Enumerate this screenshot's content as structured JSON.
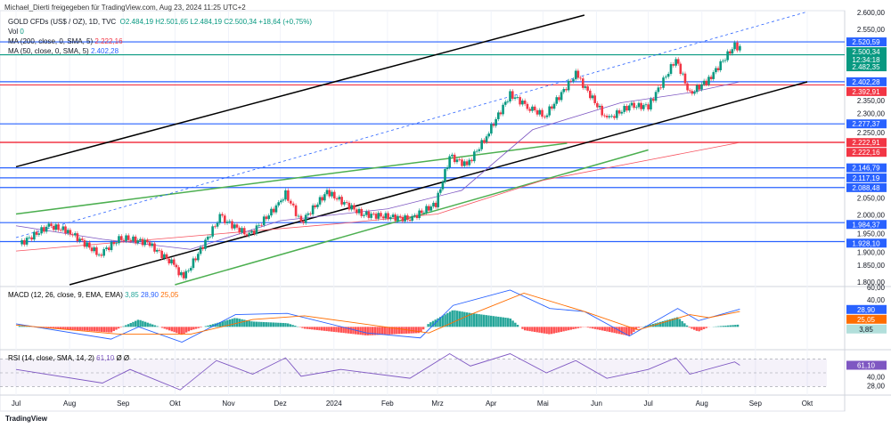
{
  "header": {
    "credit": "Michael_Dierti freigegeben für TradingView.com, Aug 23, 2024 11:25 UTC+2",
    "symbol": "GOLD CFDs (US$ / OZ), 1D, TVC",
    "o": "O2.484,19",
    "h": "H2.501,65",
    "l": "L2.484,19",
    "c": "C2.500,34",
    "chg": "+18,64 (+0,75%)",
    "vol_label": "Vol",
    "vol": "0",
    "ma200_label": "MA (200, close, 0, SMA, 5)",
    "ma200": "2.222,16",
    "ma50_label": "MA (50, close, 0, SMA, 5)",
    "ma50": "2.402,28",
    "macd_label": "MACD (12, 26, close, 9, EMA, EMA)",
    "macd_vals": [
      "3,85",
      "28,90",
      "25,05"
    ],
    "rsi_label": "RSI (14, close, SMA, 14, 2)",
    "rsi_vals": [
      "61,10",
      "Ø",
      "Ø"
    ]
  },
  "footer": {
    "logo": "TradingView"
  },
  "colors": {
    "up": "#089981",
    "down": "#f23645",
    "blue": "#2962ff",
    "ma50": "#7e57c2",
    "ma200": "#f7525f",
    "macd": "#2962ff",
    "signal": "#ff6d00",
    "rsi": "#7e57c2"
  },
  "chart_data": {
    "type": "candlestick",
    "ylim": [
      1800,
      2600
    ],
    "price_ticks": [
      "2.600,00",
      "2.550,00",
      "2.350,00",
      "2.300,00",
      "2.250,00",
      "2.050,00",
      "2.000,00",
      "1.950,00",
      "1.900,00",
      "1.850,00",
      "1.800,00"
    ],
    "price_tick_values": [
      2600,
      2550,
      2350,
      2300,
      2250,
      2050,
      2000,
      1950,
      1900,
      1850,
      1800
    ],
    "x_ticks": [
      {
        "label": "Jul",
        "date": "2023-07-01"
      },
      {
        "label": "Aug",
        "date": "2023-08-01"
      },
      {
        "label": "Sep",
        "date": "2023-09-01"
      },
      {
        "label": "Okt",
        "date": "2023-10-01"
      },
      {
        "label": "Nov",
        "date": "2023-11-01"
      },
      {
        "label": "Dez",
        "date": "2023-12-01"
      },
      {
        "label": "2024",
        "date": "2024-01-01"
      },
      {
        "label": "Feb",
        "date": "2024-02-01"
      },
      {
        "label": "Mrz",
        "date": "2024-03-01"
      },
      {
        "label": "Apr",
        "date": "2024-04-01"
      },
      {
        "label": "Mai",
        "date": "2024-05-01"
      },
      {
        "label": "Jun",
        "date": "2024-06-01"
      },
      {
        "label": "Jul",
        "date": "2024-07-01"
      },
      {
        "label": "Aug",
        "date": "2024-08-01"
      },
      {
        "label": "Sep",
        "date": "2024-09-01"
      },
      {
        "label": "Okt",
        "date": "2024-10-01"
      }
    ],
    "closes": [
      [
        "2023-07-03",
        1920
      ],
      [
        "2023-07-20",
        1975
      ],
      [
        "2023-07-31",
        1960
      ],
      [
        "2023-08-18",
        1890
      ],
      [
        "2023-08-31",
        1940
      ],
      [
        "2023-09-15",
        1925
      ],
      [
        "2023-09-29",
        1865
      ],
      [
        "2023-10-06",
        1820
      ],
      [
        "2023-10-27",
        2000
      ],
      [
        "2023-11-13",
        1945
      ],
      [
        "2023-11-30",
        2040
      ],
      [
        "2023-12-04",
        2070
      ],
      [
        "2023-12-13",
        1985
      ],
      [
        "2023-12-28",
        2075
      ],
      [
        "2024-01-17",
        2010
      ],
      [
        "2024-02-14",
        1995
      ],
      [
        "2024-02-29",
        2040
      ],
      [
        "2024-03-08",
        2180
      ],
      [
        "2024-03-18",
        2155
      ],
      [
        "2024-03-28",
        2230
      ],
      [
        "2024-04-12",
        2365
      ],
      [
        "2024-04-22",
        2330
      ],
      [
        "2024-05-02",
        2300
      ],
      [
        "2024-05-20",
        2425
      ],
      [
        "2024-06-07",
        2290
      ],
      [
        "2024-06-20",
        2330
      ],
      [
        "2024-07-01",
        2330
      ],
      [
        "2024-07-17",
        2470
      ],
      [
        "2024-07-25",
        2365
      ],
      [
        "2024-08-05",
        2410
      ],
      [
        "2024-08-20",
        2510
      ],
      [
        "2024-08-23",
        2500
      ]
    ],
    "hlines": [
      {
        "price": 2520.59,
        "label": "2.520,59",
        "color": "#2962ff"
      },
      {
        "price": 2482.35,
        "label": "2.482,35",
        "color": "#089981"
      },
      {
        "price": 2402.28,
        "label": "2.402,28",
        "color": "#2962ff"
      },
      {
        "price": 2392.91,
        "label": "2.392,91",
        "color": "#f23645"
      },
      {
        "price": 2277.37,
        "label": "2.277,37",
        "color": "#2962ff"
      },
      {
        "price": 2222.91,
        "label": "2.222,91",
        "color": "#f23645"
      },
      {
        "price": 2222.16,
        "label": "2.222,16",
        "color": "#f23645"
      },
      {
        "price": 2146.79,
        "label": "2.146,79",
        "color": "#2962ff"
      },
      {
        "price": 2117.19,
        "label": "2.117,19",
        "color": "#2962ff"
      },
      {
        "price": 2088.48,
        "label": "2.088,48",
        "color": "#2962ff"
      },
      {
        "price": 1984.37,
        "label": "1.984,37",
        "color": "#2962ff"
      },
      {
        "price": 1928.1,
        "label": "1.928,10",
        "color": "#2962ff"
      }
    ],
    "last": {
      "price": 2500.34,
      "label": "2.500,34",
      "countdown": "12:34:18"
    },
    "trendlines": [
      {
        "color": "#000000",
        "p": [
          [
            "2023-07-01",
            2150
          ],
          [
            "2024-05-25",
            2600
          ]
        ]
      },
      {
        "color": "#000000",
        "p": [
          [
            "2023-08-01",
            1800
          ],
          [
            "2024-10-01",
            2402
          ]
        ]
      },
      {
        "color": "#4caf50",
        "p": [
          [
            "2023-07-01",
            2010
          ],
          [
            "2024-05-15",
            2220
          ]
        ]
      },
      {
        "color": "#4caf50",
        "p": [
          [
            "2023-10-01",
            1800
          ],
          [
            "2024-07-01",
            2200
          ]
        ]
      },
      {
        "color": "#2962ff",
        "dash": true,
        "p": [
          [
            "2023-07-01",
            1940
          ],
          [
            "2024-10-01",
            2610
          ]
        ]
      }
    ],
    "ma50": [
      [
        "2023-07-01",
        1975
      ],
      [
        "2023-08-20",
        1935
      ],
      [
        "2023-10-10",
        1905
      ],
      [
        "2023-12-01",
        1990
      ],
      [
        "2024-02-01",
        2025
      ],
      [
        "2024-03-15",
        2080
      ],
      [
        "2024-04-25",
        2260
      ],
      [
        "2024-06-15",
        2340
      ],
      [
        "2024-07-25",
        2370
      ],
      [
        "2024-08-23",
        2402
      ]
    ],
    "ma200": [
      [
        "2023-07-01",
        1900
      ],
      [
        "2023-10-01",
        1940
      ],
      [
        "2024-01-01",
        1980
      ],
      [
        "2024-03-01",
        2010
      ],
      [
        "2024-05-01",
        2110
      ],
      [
        "2024-07-01",
        2170
      ],
      [
        "2024-08-23",
        2222
      ]
    ],
    "macd": {
      "ylim": [
        -30,
        60
      ],
      "macd": [
        [
          "2023-07-01",
          5
        ],
        [
          "2023-08-25",
          -20
        ],
        [
          "2023-09-10",
          0
        ],
        [
          "2023-10-05",
          -25
        ],
        [
          "2023-11-05",
          20
        ],
        [
          "2023-12-05",
          22
        ],
        [
          "2024-01-20",
          -10
        ],
        [
          "2024-02-20",
          -18
        ],
        [
          "2024-03-10",
          35
        ],
        [
          "2024-04-12",
          60
        ],
        [
          "2024-05-05",
          30
        ],
        [
          "2024-05-25",
          25
        ],
        [
          "2024-06-20",
          -15
        ],
        [
          "2024-07-18",
          30
        ],
        [
          "2024-07-30",
          10
        ],
        [
          "2024-08-23",
          28.9
        ]
      ],
      "signal": [
        [
          "2023-07-01",
          3
        ],
        [
          "2023-08-30",
          -12
        ],
        [
          "2023-10-10",
          -12
        ],
        [
          "2023-11-15",
          12
        ],
        [
          "2023-12-15",
          18
        ],
        [
          "2024-02-25",
          -10
        ],
        [
          "2024-03-20",
          20
        ],
        [
          "2024-04-20",
          55
        ],
        [
          "2024-05-25",
          25
        ],
        [
          "2024-06-25",
          -5
        ],
        [
          "2024-07-25",
          20
        ],
        [
          "2024-08-05",
          15
        ],
        [
          "2024-08-23",
          25.05
        ]
      ]
    },
    "rsi": {
      "ylim": [
        20,
        80
      ],
      "values": [
        [
          "2023-07-01",
          55
        ],
        [
          "2023-08-20",
          35
        ],
        [
          "2023-09-05",
          55
        ],
        [
          "2023-10-04",
          25
        ],
        [
          "2023-10-25",
          68
        ],
        [
          "2023-11-15",
          48
        ],
        [
          "2023-12-04",
          72
        ],
        [
          "2023-12-13",
          45
        ],
        [
          "2024-01-05",
          55
        ],
        [
          "2024-02-14",
          42
        ],
        [
          "2024-03-08",
          78
        ],
        [
          "2024-03-20",
          60
        ],
        [
          "2024-04-12",
          78
        ],
        [
          "2024-05-03",
          50
        ],
        [
          "2024-05-20",
          68
        ],
        [
          "2024-06-07",
          42
        ],
        [
          "2024-07-01",
          55
        ],
        [
          "2024-07-17",
          72
        ],
        [
          "2024-07-25",
          48
        ],
        [
          "2024-08-20",
          66
        ],
        [
          "2024-08-23",
          61.1
        ]
      ]
    }
  }
}
